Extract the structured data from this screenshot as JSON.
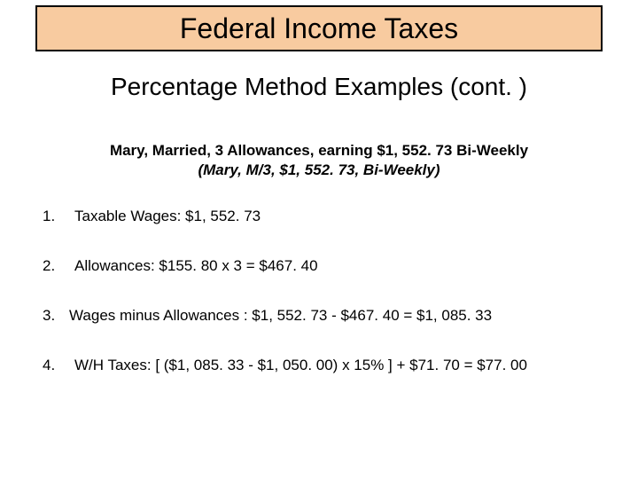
{
  "colors": {
    "banner_bg": "#f8cba0",
    "banner_border": "#000000",
    "text": "#000000",
    "page_bg": "#ffffff"
  },
  "typography": {
    "title_fontsize": 32,
    "subtitle_fontsize": 28,
    "header_fontsize": 17,
    "body_fontsize": 17,
    "font_family": "Arial"
  },
  "title": "Federal Income Taxes",
  "subtitle": "Percentage Method Examples (cont. )",
  "example_header": "Mary, Married, 3 Allowances, earning $1, 552. 73 Bi-Weekly",
  "example_subheader": "(Mary, M/3, $1, 552. 73, Bi-Weekly)",
  "items": [
    {
      "number": "1.",
      "text": "Taxable Wages:  $1, 552. 73"
    },
    {
      "number": "2.",
      "text": "Allowances:           $155. 80  x  3  =  $467. 40"
    },
    {
      "number": "3.",
      "text": "Wages minus Allowances :     $1, 552. 73  -  $467. 40  =  $1, 085. 33"
    },
    {
      "number": "4.",
      "text": "W/H Taxes:     [ ($1, 085. 33  -  $1, 050. 00)  x  15% ]  +  $71. 70  =  $77. 00"
    }
  ]
}
